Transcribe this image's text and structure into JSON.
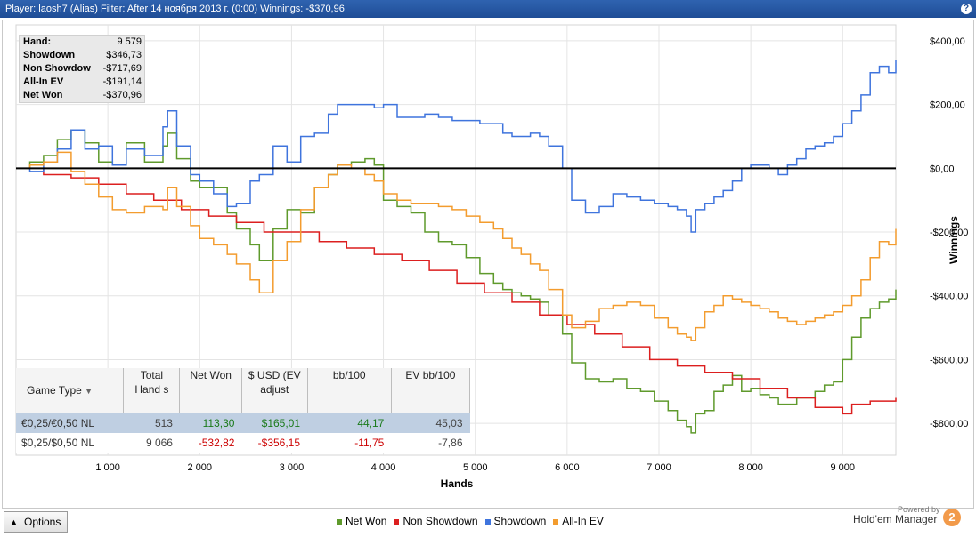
{
  "window": {
    "title": "Player: laosh7 (Alias) Filter: After 14 ноября 2013 г. (0:00) Winnings: -$370,96"
  },
  "stats": [
    {
      "label": "Hand:",
      "value": "9 579"
    },
    {
      "label": "Showdown",
      "value": "$346,73"
    },
    {
      "label": "Non Showdow",
      "value": "-$717,69"
    },
    {
      "label": "All-In EV",
      "value": "-$191,14"
    },
    {
      "label": "Net Won",
      "value": "-$370,96"
    }
  ],
  "table": {
    "headers": [
      "Game Type",
      "Total Hand s",
      "Net Won",
      "$ USD (EV adjust",
      "bb/100",
      "EV bb/100"
    ],
    "rows": [
      [
        "€0,25/€0,50 NL",
        "513",
        "113,30",
        "$165,01",
        "44,17",
        "45,03"
      ],
      [
        "$0,25/$0,50 NL",
        "9 066",
        "-532,82",
        "-$356,15",
        "-11,75",
        "-7,86"
      ]
    ]
  },
  "options_label": "Options",
  "brand": {
    "powered": "Powered by",
    "name": "Hold'em Manager",
    "logo": "2"
  },
  "chart_data": {
    "type": "line",
    "xlabel": "Hands",
    "ylabel": "Winnings",
    "xlim": [
      0,
      9579
    ],
    "ylim": [
      -900,
      450
    ],
    "x_ticks": [
      1000,
      2000,
      3000,
      4000,
      5000,
      6000,
      7000,
      8000,
      9000
    ],
    "x_tick_labels": [
      "1 000",
      "2 000",
      "3 000",
      "4 000",
      "5 000",
      "6 000",
      "7 000",
      "8 000",
      "9 000"
    ],
    "y_ticks": [
      400,
      200,
      0,
      -200,
      -400,
      -600,
      -800
    ],
    "y_tick_labels": [
      "$400,00",
      "$200,00",
      "$0,00",
      "-$200,00",
      "-$400,00",
      "-$600,00",
      "-$800,00"
    ],
    "grid": true,
    "legend_position": "bottom",
    "series": [
      {
        "name": "Net Won",
        "color": "#5f9a2c",
        "x": [
          0,
          150,
          300,
          450,
          600,
          750,
          900,
          1050,
          1200,
          1400,
          1600,
          1650,
          1750,
          1900,
          2000,
          2150,
          2300,
          2400,
          2550,
          2650,
          2800,
          2950,
          3100,
          3250,
          3400,
          3500,
          3650,
          3800,
          3900,
          4000,
          4150,
          4300,
          4450,
          4600,
          4750,
          4900,
          5050,
          5200,
          5300,
          5400,
          5500,
          5600,
          5700,
          5800,
          5950,
          6050,
          6200,
          6350,
          6500,
          6650,
          6800,
          6950,
          7100,
          7200,
          7300,
          7350,
          7400,
          7500,
          7600,
          7700,
          7800,
          7900,
          8000,
          8100,
          8200,
          8300,
          8400,
          8500,
          8600,
          8700,
          8800,
          8900,
          9000,
          9100,
          9200,
          9300,
          9400,
          9500,
          9579
        ],
        "y": [
          0,
          20,
          40,
          90,
          120,
          80,
          20,
          10,
          80,
          20,
          70,
          110,
          30,
          -40,
          -60,
          -60,
          -140,
          -190,
          -240,
          -290,
          -190,
          -130,
          -140,
          -60,
          -20,
          10,
          20,
          30,
          10,
          -100,
          -120,
          -140,
          -200,
          -230,
          -240,
          -280,
          -330,
          -360,
          -380,
          -390,
          -400,
          -410,
          -420,
          -460,
          -520,
          -610,
          -660,
          -670,
          -660,
          -690,
          -700,
          -730,
          -760,
          -790,
          -810,
          -830,
          -770,
          -760,
          -700,
          -680,
          -650,
          -700,
          -690,
          -710,
          -720,
          -740,
          -740,
          -720,
          -720,
          -700,
          -680,
          -670,
          -600,
          -530,
          -470,
          -440,
          -420,
          -410,
          -380
        ]
      },
      {
        "name": "Non Showdown",
        "color": "#dc1f1f",
        "x": [
          0,
          300,
          600,
          900,
          1200,
          1500,
          1800,
          2100,
          2400,
          2700,
          3000,
          3300,
          3600,
          3900,
          4200,
          4500,
          4800,
          5100,
          5400,
          5700,
          6000,
          6300,
          6600,
          6900,
          7200,
          7500,
          7800,
          8100,
          8400,
          8700,
          9000,
          9100,
          9300,
          9579
        ],
        "y": [
          0,
          -20,
          -30,
          -50,
          -80,
          -100,
          -130,
          -150,
          -170,
          -200,
          -200,
          -230,
          -250,
          -270,
          -290,
          -320,
          -360,
          -390,
          -420,
          -460,
          -490,
          -520,
          -560,
          -600,
          -620,
          -640,
          -660,
          -690,
          -720,
          -750,
          -770,
          -740,
          -730,
          -720
        ]
      },
      {
        "name": "Showdown",
        "color": "#3f74dd",
        "x": [
          0,
          150,
          300,
          450,
          600,
          750,
          900,
          1050,
          1200,
          1400,
          1600,
          1650,
          1750,
          1900,
          2000,
          2150,
          2300,
          2400,
          2550,
          2650,
          2800,
          2950,
          3100,
          3250,
          3400,
          3500,
          3650,
          3800,
          3900,
          4000,
          4150,
          4300,
          4450,
          4600,
          4750,
          4900,
          5050,
          5200,
          5300,
          5400,
          5500,
          5600,
          5700,
          5800,
          5950,
          6050,
          6200,
          6350,
          6500,
          6650,
          6800,
          6950,
          7100,
          7200,
          7300,
          7350,
          7400,
          7500,
          7600,
          7700,
          7800,
          7900,
          8000,
          8100,
          8200,
          8300,
          8400,
          8500,
          8600,
          8700,
          8800,
          8900,
          9000,
          9100,
          9200,
          9300,
          9400,
          9500,
          9579
        ],
        "y": [
          0,
          -10,
          20,
          60,
          120,
          60,
          70,
          10,
          60,
          40,
          130,
          180,
          70,
          -20,
          -40,
          -80,
          -120,
          -110,
          -40,
          -20,
          70,
          20,
          100,
          110,
          170,
          200,
          200,
          200,
          190,
          200,
          160,
          160,
          170,
          160,
          150,
          150,
          140,
          140,
          110,
          100,
          100,
          110,
          100,
          70,
          0,
          -100,
          -140,
          -120,
          -80,
          -90,
          -100,
          -110,
          -120,
          -130,
          -150,
          -200,
          -130,
          -110,
          -90,
          -70,
          -40,
          0,
          10,
          10,
          0,
          -20,
          10,
          30,
          60,
          70,
          80,
          100,
          140,
          180,
          230,
          300,
          320,
          300,
          340
        ]
      },
      {
        "name": "All-In EV",
        "color": "#f39c2e",
        "x": [
          0,
          150,
          300,
          450,
          600,
          750,
          900,
          1050,
          1200,
          1400,
          1600,
          1650,
          1750,
          1900,
          2000,
          2150,
          2300,
          2400,
          2550,
          2650,
          2800,
          2950,
          3100,
          3250,
          3400,
          3500,
          3650,
          3800,
          3900,
          4000,
          4150,
          4300,
          4450,
          4600,
          4750,
          4900,
          5050,
          5200,
          5300,
          5400,
          5500,
          5600,
          5700,
          5800,
          5950,
          6050,
          6200,
          6350,
          6500,
          6650,
          6800,
          6950,
          7100,
          7200,
          7300,
          7350,
          7400,
          7500,
          7600,
          7700,
          7800,
          7900,
          8000,
          8100,
          8200,
          8300,
          8400,
          8500,
          8600,
          8700,
          8800,
          8900,
          9000,
          9100,
          9200,
          9300,
          9400,
          9500,
          9579
        ],
        "y": [
          0,
          10,
          20,
          50,
          -10,
          -50,
          -90,
          -130,
          -140,
          -120,
          -130,
          -60,
          -120,
          -180,
          -220,
          -240,
          -270,
          -300,
          -350,
          -390,
          -290,
          -230,
          -130,
          -60,
          -20,
          10,
          0,
          -20,
          -40,
          -80,
          -100,
          -110,
          -110,
          -120,
          -130,
          -150,
          -170,
          -190,
          -220,
          -250,
          -270,
          -300,
          -320,
          -380,
          -460,
          -500,
          -480,
          -440,
          -430,
          -420,
          -430,
          -470,
          -500,
          -520,
          -530,
          -540,
          -500,
          -450,
          -430,
          -400,
          -410,
          -420,
          -430,
          -440,
          -450,
          -470,
          -480,
          -490,
          -480,
          -470,
          -460,
          -450,
          -430,
          -400,
          -350,
          -280,
          -230,
          -240,
          -190
        ]
      }
    ]
  }
}
